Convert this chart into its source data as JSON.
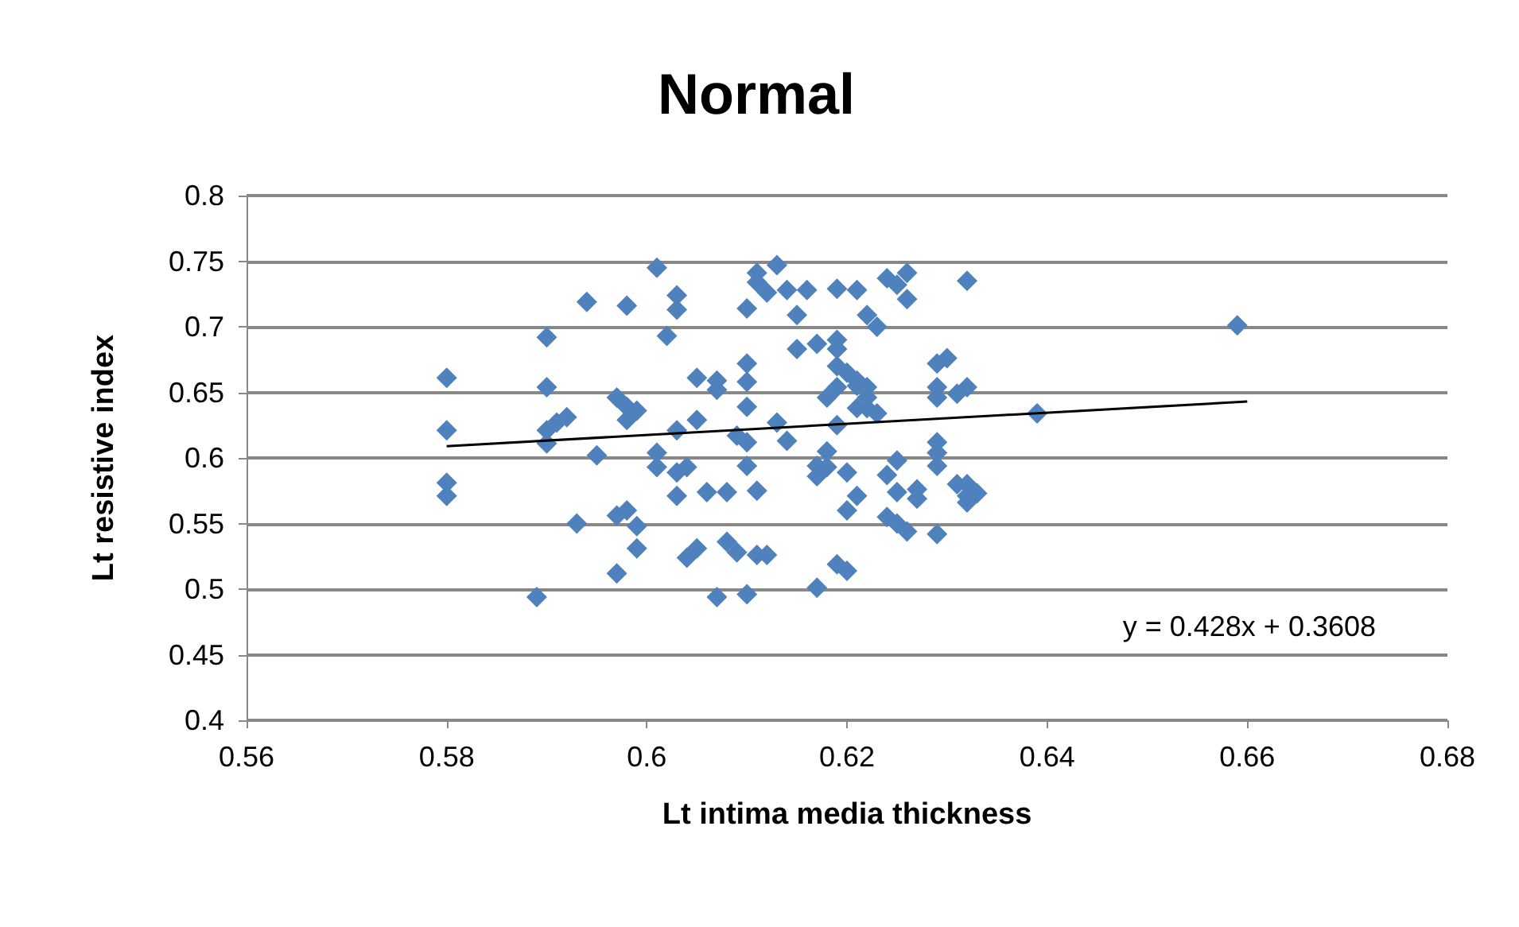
{
  "chart_data": {
    "type": "scatter",
    "title": "Normal",
    "xlabel": "Lt intima media thickness",
    "ylabel": "Lt resistive index",
    "xlim": [
      0.56,
      0.68
    ],
    "xticks": [
      0.56,
      0.58,
      0.6,
      0.62,
      0.64,
      0.66,
      0.68
    ],
    "ylim": [
      0.4,
      0.8
    ],
    "yticks": [
      0.4,
      0.45,
      0.5,
      0.55,
      0.6,
      0.65,
      0.7,
      0.75,
      0.8
    ],
    "grid": "y",
    "marker": "diamond",
    "annotations": [
      "y = 0.428x + 0.3608"
    ],
    "series": [
      {
        "color": "#4f81bd",
        "x": [
          0.58,
          0.58,
          0.58,
          0.58,
          0.589,
          0.59,
          0.59,
          0.59,
          0.59,
          0.591,
          0.592,
          0.593,
          0.594,
          0.595,
          0.597,
          0.597,
          0.597,
          0.598,
          0.598,
          0.598,
          0.598,
          0.599,
          0.599,
          0.599,
          0.601,
          0.601,
          0.601,
          0.603,
          0.603,
          0.602,
          0.603,
          0.603,
          0.603,
          0.604,
          0.604,
          0.605,
          0.605,
          0.605,
          0.606,
          0.607,
          0.607,
          0.608,
          0.607,
          0.608,
          0.609,
          0.609,
          0.61,
          0.61,
          0.61,
          0.61,
          0.61,
          0.61,
          0.61,
          0.611,
          0.612,
          0.611,
          0.611,
          0.611,
          0.612,
          0.613,
          0.613,
          0.614,
          0.614,
          0.615,
          0.615,
          0.616,
          0.617,
          0.617,
          0.617,
          0.617,
          0.618,
          0.618,
          0.618,
          0.619,
          0.619,
          0.619,
          0.619,
          0.619,
          0.619,
          0.62,
          0.619,
          0.62,
          0.62,
          0.621,
          0.621,
          0.621,
          0.621,
          0.621,
          0.622,
          0.622,
          0.622,
          0.622,
          0.623,
          0.623,
          0.624,
          0.624,
          0.624,
          0.625,
          0.625,
          0.625,
          0.625,
          0.626,
          0.626,
          0.626,
          0.627,
          0.627,
          0.629,
          0.629,
          0.629,
          0.629,
          0.629,
          0.629,
          0.629,
          0.63,
          0.631,
          0.631,
          0.632,
          0.632,
          0.632,
          0.632,
          0.632,
          0.633,
          0.639,
          0.659,
          0.62
        ],
        "values": [
          0.661,
          0.621,
          0.581,
          0.571,
          0.494,
          0.692,
          0.654,
          0.621,
          0.611,
          0.627,
          0.631,
          0.55,
          0.719,
          0.602,
          0.646,
          0.556,
          0.512,
          0.716,
          0.629,
          0.639,
          0.56,
          0.548,
          0.531,
          0.636,
          0.745,
          0.604,
          0.593,
          0.724,
          0.713,
          0.693,
          0.621,
          0.589,
          0.571,
          0.593,
          0.524,
          0.629,
          0.661,
          0.531,
          0.574,
          0.652,
          0.659,
          0.536,
          0.494,
          0.574,
          0.528,
          0.617,
          0.714,
          0.612,
          0.672,
          0.658,
          0.639,
          0.594,
          0.496,
          0.526,
          0.726,
          0.741,
          0.734,
          0.575,
          0.526,
          0.747,
          0.627,
          0.613,
          0.728,
          0.709,
          0.683,
          0.728,
          0.594,
          0.586,
          0.501,
          0.687,
          0.605,
          0.646,
          0.593,
          0.729,
          0.683,
          0.654,
          0.69,
          0.67,
          0.625,
          0.56,
          0.519,
          0.589,
          0.665,
          0.571,
          0.655,
          0.728,
          0.638,
          0.659,
          0.638,
          0.646,
          0.654,
          0.709,
          0.7,
          0.634,
          0.555,
          0.587,
          0.737,
          0.732,
          0.574,
          0.598,
          0.55,
          0.544,
          0.721,
          0.741,
          0.569,
          0.576,
          0.612,
          0.654,
          0.672,
          0.604,
          0.646,
          0.594,
          0.542,
          0.676,
          0.58,
          0.649,
          0.735,
          0.571,
          0.566,
          0.654,
          0.58,
          0.573,
          0.634,
          0.701,
          0.514
        ]
      },
      {
        "type": "line",
        "color": "#000000",
        "marker": "none",
        "x": [
          0.58,
          0.66
        ],
        "values": [
          0.609,
          0.643
        ]
      }
    ]
  }
}
